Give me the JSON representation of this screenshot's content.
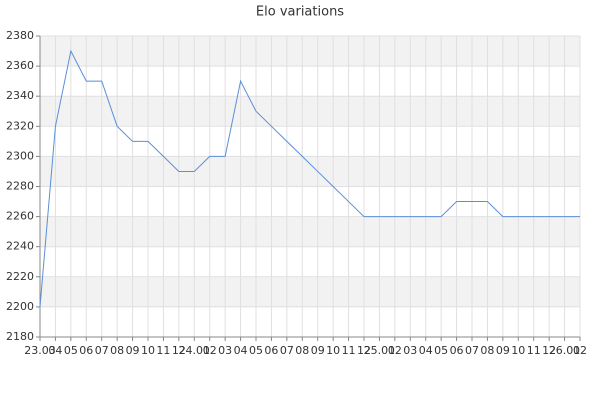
{
  "chart_data": {
    "type": "line",
    "title": "Elo variations",
    "categories": [
      "23.03",
      "04",
      "05",
      "06",
      "07",
      "08",
      "09",
      "10",
      "11",
      "12",
      "24.01",
      "02",
      "03",
      "04",
      "05",
      "06",
      "07",
      "08",
      "09",
      "10",
      "11",
      "12",
      "25.01",
      "02",
      "03",
      "04",
      "05",
      "06",
      "07",
      "08",
      "09",
      "10",
      "11",
      "12",
      "26.01",
      "02"
    ],
    "series": [
      {
        "name": "Elo",
        "color": "#5b8fd9",
        "values": [
          2200,
          2320,
          2370,
          2350,
          2350,
          2320,
          2310,
          2310,
          2300,
          2290,
          2290,
          2300,
          2300,
          2350,
          2330,
          2320,
          2310,
          2300,
          2290,
          2280,
          2270,
          2260,
          2260,
          2260,
          2260,
          2260,
          2260,
          2270,
          2270,
          2270,
          2260,
          2260,
          2260,
          2260,
          2260,
          2260
        ]
      }
    ],
    "ylim": [
      2180,
      2380
    ],
    "yticks": [
      2180,
      2200,
      2220,
      2240,
      2260,
      2280,
      2300,
      2320,
      2340,
      2360,
      2380
    ],
    "grid": true
  }
}
